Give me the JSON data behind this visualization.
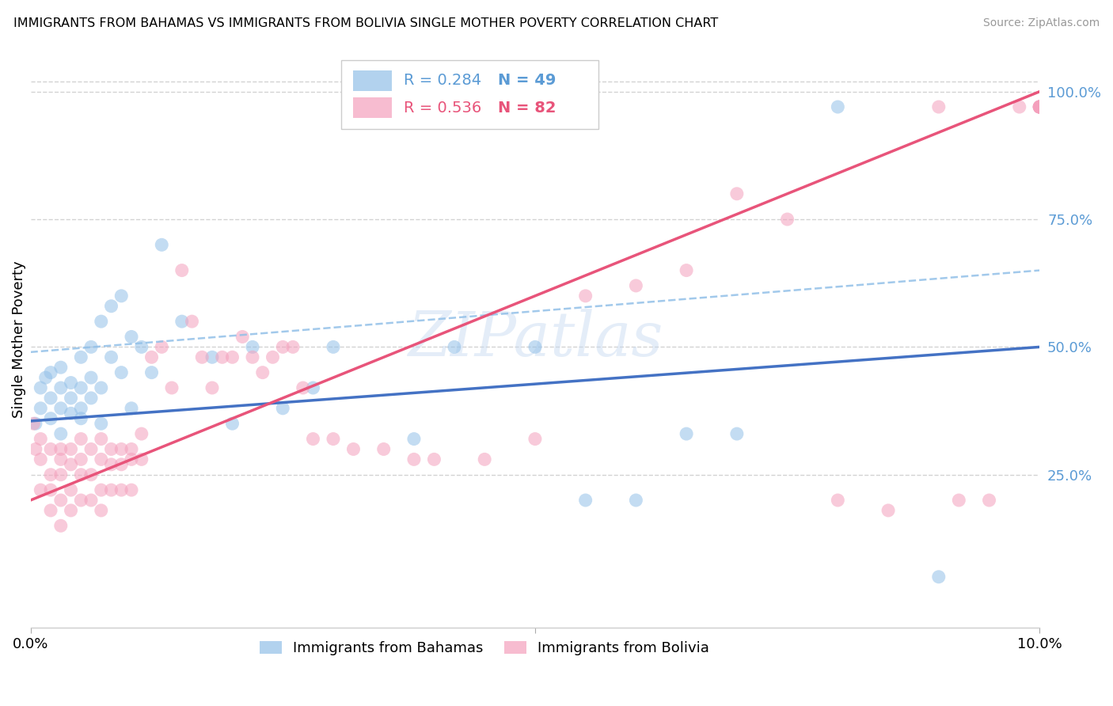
{
  "title": "IMMIGRANTS FROM BAHAMAS VS IMMIGRANTS FROM BOLIVIA SINGLE MOTHER POVERTY CORRELATION CHART",
  "source": "Source: ZipAtlas.com",
  "ylabel": "Single Mother Poverty",
  "right_ytick_labels": [
    "100.0%",
    "75.0%",
    "50.0%",
    "25.0%"
  ],
  "right_ytick_values": [
    1.0,
    0.75,
    0.5,
    0.25
  ],
  "xlim": [
    0.0,
    0.1
  ],
  "ylim": [
    -0.05,
    1.08
  ],
  "watermark": "ZIPatlas",
  "blue_color": "#92C0E8",
  "pink_color": "#F4A0BC",
  "trend_blue_color": "#4472C4",
  "trend_pink_color": "#E8547A",
  "dashed_blue_color": "#92C0E8",
  "right_label_color": "#5B9BD5",
  "grid_color": "#C8C8C8",
  "bahamas_x": [
    0.0005,
    0.001,
    0.001,
    0.0015,
    0.002,
    0.002,
    0.002,
    0.003,
    0.003,
    0.003,
    0.003,
    0.004,
    0.004,
    0.004,
    0.005,
    0.005,
    0.005,
    0.005,
    0.006,
    0.006,
    0.006,
    0.007,
    0.007,
    0.007,
    0.008,
    0.008,
    0.009,
    0.009,
    0.01,
    0.01,
    0.011,
    0.012,
    0.013,
    0.015,
    0.018,
    0.02,
    0.022,
    0.025,
    0.028,
    0.03,
    0.038,
    0.042,
    0.05,
    0.055,
    0.06,
    0.065,
    0.07,
    0.08,
    0.09
  ],
  "bahamas_y": [
    0.35,
    0.42,
    0.38,
    0.44,
    0.36,
    0.4,
    0.45,
    0.38,
    0.42,
    0.33,
    0.46,
    0.37,
    0.43,
    0.4,
    0.36,
    0.42,
    0.38,
    0.48,
    0.4,
    0.44,
    0.5,
    0.42,
    0.55,
    0.35,
    0.58,
    0.48,
    0.6,
    0.45,
    0.52,
    0.38,
    0.5,
    0.45,
    0.7,
    0.55,
    0.48,
    0.35,
    0.5,
    0.38,
    0.42,
    0.5,
    0.32,
    0.5,
    0.5,
    0.2,
    0.2,
    0.33,
    0.33,
    0.97,
    0.05
  ],
  "bolivia_x": [
    0.0003,
    0.0005,
    0.001,
    0.001,
    0.001,
    0.002,
    0.002,
    0.002,
    0.002,
    0.003,
    0.003,
    0.003,
    0.003,
    0.003,
    0.004,
    0.004,
    0.004,
    0.004,
    0.005,
    0.005,
    0.005,
    0.005,
    0.006,
    0.006,
    0.006,
    0.007,
    0.007,
    0.007,
    0.007,
    0.008,
    0.008,
    0.008,
    0.009,
    0.009,
    0.009,
    0.01,
    0.01,
    0.01,
    0.011,
    0.011,
    0.012,
    0.013,
    0.014,
    0.015,
    0.016,
    0.017,
    0.018,
    0.019,
    0.02,
    0.021,
    0.022,
    0.023,
    0.024,
    0.025,
    0.026,
    0.027,
    0.028,
    0.03,
    0.032,
    0.035,
    0.038,
    0.04,
    0.045,
    0.05,
    0.055,
    0.06,
    0.065,
    0.07,
    0.075,
    0.08,
    0.085,
    0.09,
    0.092,
    0.095,
    0.098,
    0.1,
    0.1,
    0.1,
    0.1,
    0.1,
    0.1,
    0.1
  ],
  "bolivia_y": [
    0.35,
    0.3,
    0.28,
    0.32,
    0.22,
    0.3,
    0.25,
    0.22,
    0.18,
    0.28,
    0.3,
    0.25,
    0.2,
    0.15,
    0.3,
    0.27,
    0.22,
    0.18,
    0.28,
    0.32,
    0.25,
    0.2,
    0.3,
    0.25,
    0.2,
    0.32,
    0.28,
    0.22,
    0.18,
    0.3,
    0.27,
    0.22,
    0.3,
    0.27,
    0.22,
    0.3,
    0.28,
    0.22,
    0.33,
    0.28,
    0.48,
    0.5,
    0.42,
    0.65,
    0.55,
    0.48,
    0.42,
    0.48,
    0.48,
    0.52,
    0.48,
    0.45,
    0.48,
    0.5,
    0.5,
    0.42,
    0.32,
    0.32,
    0.3,
    0.3,
    0.28,
    0.28,
    0.28,
    0.32,
    0.6,
    0.62,
    0.65,
    0.8,
    0.75,
    0.2,
    0.18,
    0.97,
    0.2,
    0.2,
    0.97,
    0.97,
    0.97,
    0.97,
    0.97,
    0.97,
    0.97,
    0.97
  ]
}
